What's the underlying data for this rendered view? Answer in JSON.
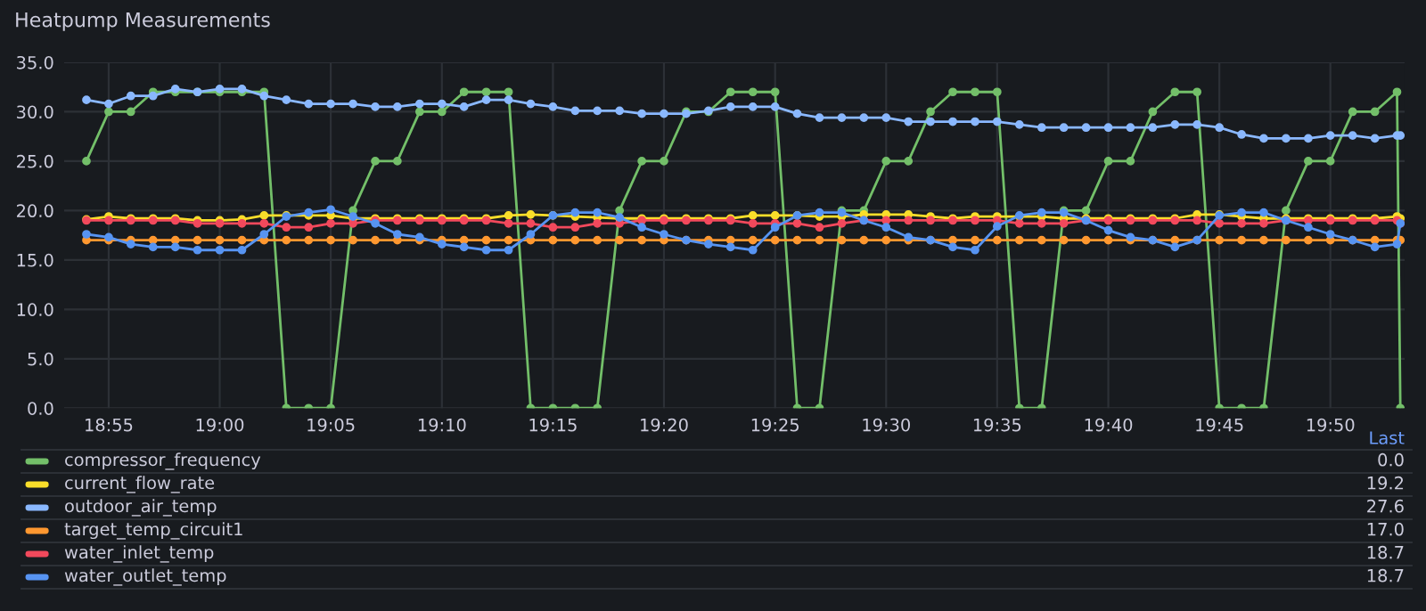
{
  "chart_data": {
    "type": "line",
    "title": "Heatpump Measurements",
    "x": [
      18.9,
      18.9167,
      18.9333,
      18.95,
      18.9667,
      18.9833,
      19.0,
      19.0167,
      19.0333,
      19.05,
      19.0667,
      19.0833,
      19.1,
      19.1167,
      19.1333,
      19.15,
      19.1667,
      19.1833,
      19.2,
      19.2167,
      19.2333,
      19.25,
      19.2667,
      19.2833,
      19.3,
      19.3167,
      19.3333,
      19.35,
      19.3667,
      19.3833,
      19.4,
      19.4167,
      19.4333,
      19.45,
      19.4667,
      19.4833,
      19.5,
      19.5167,
      19.5333,
      19.55,
      19.5667,
      19.5833,
      19.6,
      19.6167,
      19.6333,
      19.65,
      19.6667,
      19.6833,
      19.7,
      19.7167,
      19.7333,
      19.75,
      19.7667,
      19.7833,
      19.8,
      19.8167,
      19.8333,
      19.85,
      19.8667,
      19.8833,
      19.8858
    ],
    "series": [
      {
        "name": "compressor_frequency",
        "color": "#73bf69",
        "values": [
          25,
          30,
          30,
          32,
          32,
          32,
          32,
          32,
          32,
          0,
          0,
          0,
          20,
          25,
          25,
          30,
          30,
          32,
          32,
          32,
          0,
          0,
          0,
          0,
          20,
          25,
          25,
          30,
          30,
          32,
          32,
          32,
          0,
          0,
          20,
          20,
          25,
          25,
          30,
          32,
          32,
          32,
          0,
          0,
          20,
          20,
          25,
          25,
          30,
          32,
          32,
          0,
          0,
          0,
          20,
          25,
          25,
          30,
          30,
          32,
          0
        ]
      },
      {
        "name": "current_flow_rate",
        "color": "#fade2a",
        "values": [
          19.1,
          19.4,
          19.2,
          19.2,
          19.2,
          19.0,
          19.0,
          19.1,
          19.5,
          19.5,
          19.5,
          19.5,
          19.2,
          19.2,
          19.2,
          19.2,
          19.2,
          19.2,
          19.2,
          19.5,
          19.6,
          19.5,
          19.4,
          19.3,
          19.2,
          19.2,
          19.2,
          19.2,
          19.2,
          19.2,
          19.5,
          19.5,
          19.5,
          19.4,
          19.4,
          19.6,
          19.6,
          19.6,
          19.4,
          19.2,
          19.4,
          19.4,
          19.4,
          19.4,
          19.2,
          19.2,
          19.2,
          19.2,
          19.2,
          19.2,
          19.6,
          19.6,
          19.4,
          19.2,
          19.2,
          19.2,
          19.2,
          19.2,
          19.2,
          19.4,
          19.2
        ]
      },
      {
        "name": "outdoor_air_temp",
        "color": "#8ab8ff",
        "values": [
          31.2,
          30.8,
          31.6,
          31.6,
          32.3,
          32.0,
          32.3,
          32.3,
          31.6,
          31.2,
          30.8,
          30.8,
          30.8,
          30.5,
          30.5,
          30.8,
          30.8,
          30.5,
          31.2,
          31.2,
          30.8,
          30.5,
          30.1,
          30.1,
          30.1,
          29.8,
          29.8,
          29.8,
          30.1,
          30.5,
          30.5,
          30.5,
          29.8,
          29.4,
          29.4,
          29.4,
          29.4,
          29.0,
          29.0,
          29.0,
          29.0,
          29.0,
          28.7,
          28.4,
          28.4,
          28.4,
          28.4,
          28.4,
          28.4,
          28.7,
          28.7,
          28.4,
          27.7,
          27.3,
          27.3,
          27.3,
          27.6,
          27.6,
          27.3,
          27.6,
          27.6
        ]
      },
      {
        "name": "target_temp_circuit1",
        "color": "#ff9830",
        "values": [
          17.0,
          17.0,
          17.0,
          17.0,
          17.0,
          17.0,
          17.0,
          17.0,
          17.0,
          17.0,
          17.0,
          17.0,
          17.0,
          17.0,
          17.0,
          17.0,
          17.0,
          17.0,
          17.0,
          17.0,
          17.0,
          17.0,
          17.0,
          17.0,
          17.0,
          17.0,
          17.0,
          17.0,
          17.0,
          17.0,
          17.0,
          17.0,
          17.0,
          17.0,
          17.0,
          17.0,
          17.0,
          17.0,
          17.0,
          17.0,
          17.0,
          17.0,
          17.0,
          17.0,
          17.0,
          17.0,
          17.0,
          17.0,
          17.0,
          17.0,
          17.0,
          17.0,
          17.0,
          17.0,
          17.0,
          17.0,
          17.0,
          17.0,
          17.0,
          17.0,
          17.0
        ]
      },
      {
        "name": "water_inlet_temp",
        "color": "#f2495c",
        "values": [
          19.0,
          19.0,
          19.0,
          19.0,
          19.0,
          18.7,
          18.7,
          18.7,
          18.7,
          18.3,
          18.3,
          18.7,
          18.7,
          19.0,
          19.0,
          19.0,
          19.0,
          19.0,
          19.0,
          18.7,
          18.7,
          18.3,
          18.3,
          18.7,
          18.7,
          19.0,
          19.0,
          19.0,
          19.0,
          19.0,
          18.7,
          18.7,
          18.7,
          18.3,
          18.7,
          19.0,
          19.0,
          19.0,
          19.0,
          19.0,
          19.0,
          19.0,
          18.7,
          18.7,
          18.7,
          19.0,
          19.0,
          19.0,
          19.0,
          19.0,
          19.0,
          18.7,
          18.7,
          18.7,
          19.0,
          19.0,
          19.0,
          19.0,
          19.0,
          19.0,
          18.7
        ]
      },
      {
        "name": "water_outlet_temp",
        "color": "#5794f2",
        "values": [
          17.6,
          17.3,
          16.6,
          16.3,
          16.3,
          16.0,
          16.0,
          16.0,
          17.6,
          19.4,
          19.8,
          20.1,
          19.4,
          18.7,
          17.6,
          17.3,
          16.6,
          16.3,
          16.0,
          16.0,
          17.6,
          19.5,
          19.8,
          19.8,
          19.3,
          18.3,
          17.6,
          17.0,
          16.6,
          16.3,
          16.0,
          18.3,
          19.5,
          19.8,
          19.8,
          19.0,
          18.3,
          17.3,
          17.0,
          16.3,
          16.0,
          18.4,
          19.5,
          19.8,
          19.8,
          19.0,
          18.0,
          17.3,
          17.0,
          16.3,
          17.0,
          19.5,
          19.8,
          19.8,
          19.0,
          18.3,
          17.6,
          17.0,
          16.3,
          16.6,
          18.7
        ]
      }
    ],
    "xlim": [
      18.8833,
      19.889
    ],
    "xticks": [
      {
        "value": 18.9167,
        "label": "18:55"
      },
      {
        "value": 19.0,
        "label": "19:00"
      },
      {
        "value": 19.0833,
        "label": "19:05"
      },
      {
        "value": 19.1667,
        "label": "19:10"
      },
      {
        "value": 19.25,
        "label": "19:15"
      },
      {
        "value": 19.3333,
        "label": "19:20"
      },
      {
        "value": 19.4167,
        "label": "19:25"
      },
      {
        "value": 19.5,
        "label": "19:30"
      },
      {
        "value": 19.5833,
        "label": "19:35"
      },
      {
        "value": 19.6667,
        "label": "19:40"
      },
      {
        "value": 19.75,
        "label": "19:45"
      },
      {
        "value": 19.8333,
        "label": "19:50"
      }
    ],
    "ylim": [
      0,
      35
    ],
    "yticks": [
      {
        "value": 0,
        "label": "0.0"
      },
      {
        "value": 5,
        "label": "5.0"
      },
      {
        "value": 10,
        "label": "10.0"
      },
      {
        "value": 15,
        "label": "15.0"
      },
      {
        "value": 20,
        "label": "20.0"
      },
      {
        "value": 25,
        "label": "25.0"
      },
      {
        "value": 30,
        "label": "30.0"
      },
      {
        "value": 35,
        "label": "35.0"
      }
    ],
    "grid": true,
    "legend": "bottom",
    "marker": "circle",
    "line_style": "solid",
    "annotations": [
      "Last",
      "0.0",
      "19.2",
      "27.6",
      "17.0",
      "18.7",
      "18.7"
    ]
  }
}
